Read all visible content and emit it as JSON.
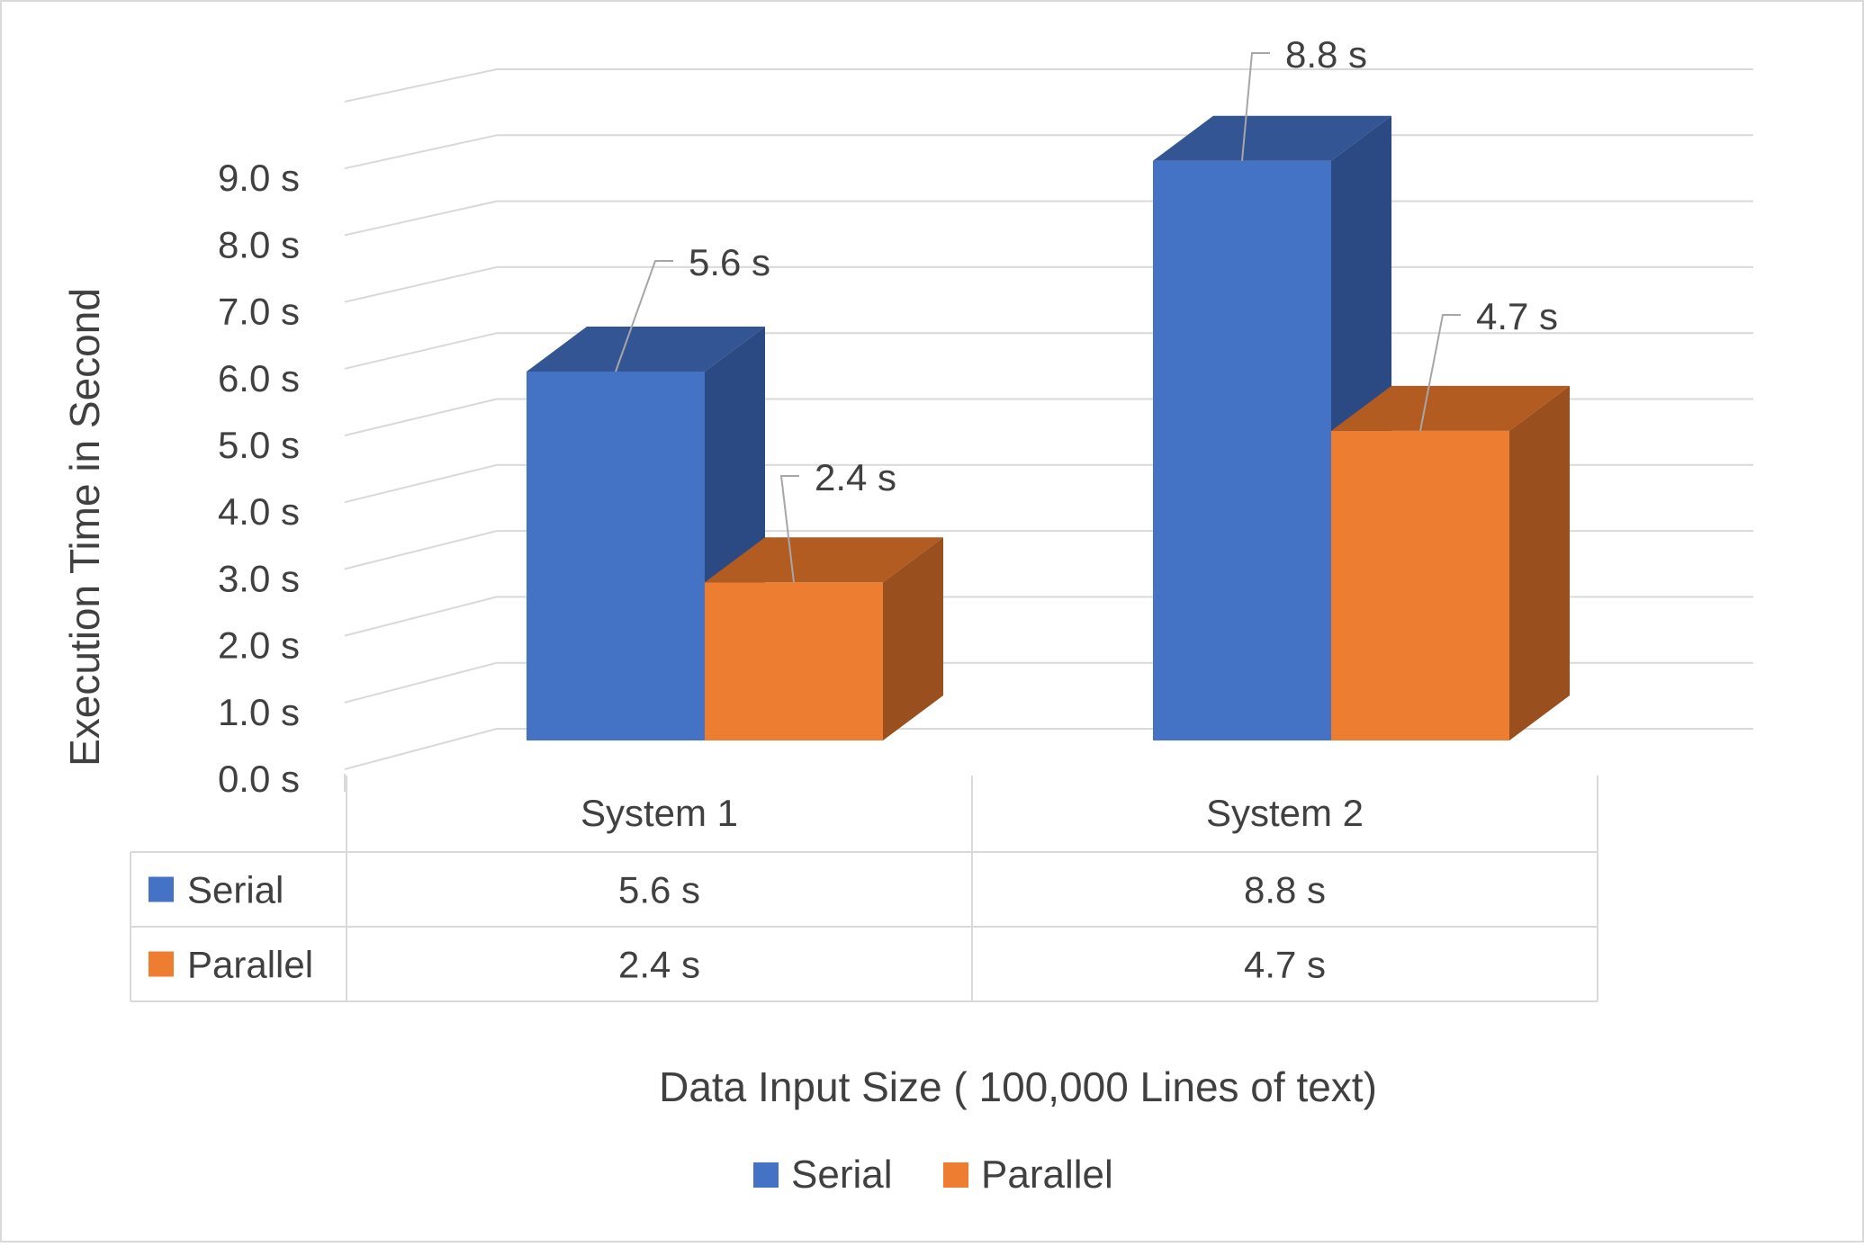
{
  "chart_data": {
    "type": "bar",
    "style": "3d-clustered-column-with-data-table",
    "categories": [
      "System 1",
      "System 2"
    ],
    "series": [
      {
        "name": "Serial",
        "values": [
          5.6,
          8.8
        ],
        "labels": [
          "5.6 s",
          "8.8 s"
        ],
        "color": "#4472C4",
        "top_color": "#345593",
        "side_color": "#2B4A83"
      },
      {
        "name": "Parallel",
        "values": [
          2.4,
          4.7
        ],
        "labels": [
          "2.4 s",
          "4.7 s"
        ],
        "color": "#ED7D31",
        "top_color": "#B25C22",
        "side_color": "#9A4F1E"
      }
    ],
    "xlabel": "Data Input Size ( 100,000 Lines of text)",
    "ylabel": "Execution Time in  Second",
    "ylim": [
      0,
      10
    ],
    "yticks": [
      "0.0 s",
      "1.0 s",
      "2.0 s",
      "3.0 s",
      "4.0 s",
      "5.0 s",
      "6.0 s",
      "7.0 s",
      "8.0 s",
      "9.0 s"
    ],
    "grid": true,
    "legend_position": "bottom",
    "data_table": {
      "rows": [
        {
          "series": "Serial",
          "cells": [
            "5.6 s",
            "8.8 s"
          ]
        },
        {
          "series": "Parallel",
          "cells": [
            "2.4 s",
            "4.7 s"
          ]
        }
      ]
    },
    "colors": {
      "grid": "#D9D9D9",
      "text": "#404040",
      "border": "#D9D9D9",
      "leader": "#A6A6A6"
    }
  }
}
